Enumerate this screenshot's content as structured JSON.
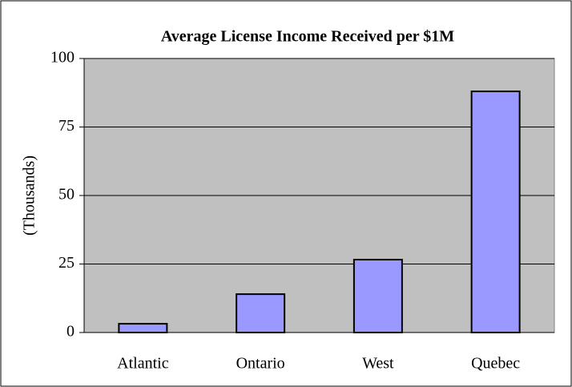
{
  "chart_data": {
    "type": "bar",
    "title": "Average License Income Received per $1M",
    "y_label": "(Thousands)",
    "categories": [
      "Atlantic",
      "Ontario",
      "West",
      "Quebec"
    ],
    "values": [
      3.2,
      14,
      26.6,
      88
    ],
    "color": "#9999ff",
    "ylim": [
      0,
      100
    ],
    "yticks": [
      0,
      25,
      50,
      75,
      100
    ],
    "grid": true
  }
}
